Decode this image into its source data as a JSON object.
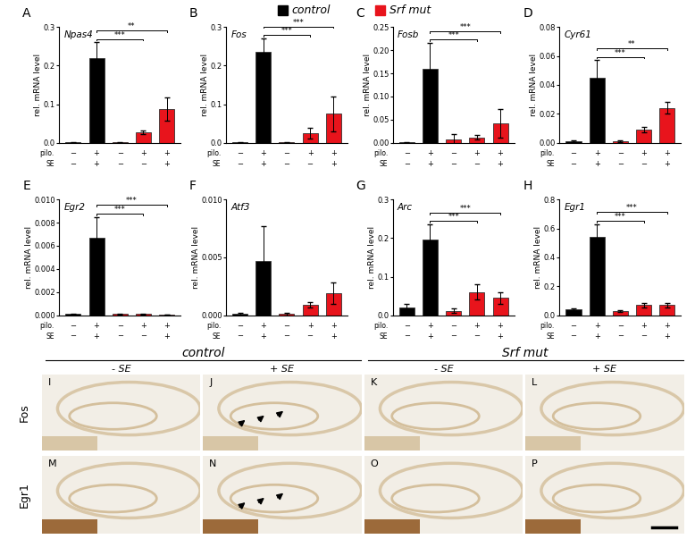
{
  "legend_entries": [
    {
      "name": "control",
      "color": "#000000"
    },
    {
      "name": "Srf mut",
      "color": "#e8141c"
    }
  ],
  "chart_data": [
    {
      "type": "bar",
      "label": "A",
      "title": "Npas4",
      "y_label": "rel. mRNA level",
      "x_rows": [
        {
          "name": "pilo.",
          "labels": [
            "−",
            "+",
            "−",
            "+",
            "+"
          ]
        },
        {
          "name": "SE",
          "labels": [
            "−",
            "+",
            "−",
            "−",
            "+"
          ]
        }
      ],
      "values": [
        0.001,
        0.22,
        0.001,
        0.027,
        0.088
      ],
      "errors": [
        0.0005,
        0.04,
        0.0005,
        0.004,
        0.03
      ],
      "colors": [
        "#000000",
        "#000000",
        "#e8141c",
        "#e8141c",
        "#e8141c"
      ],
      "ylim": [
        0,
        0.3
      ],
      "yticks": [
        {
          "value": 0,
          "label": "0.0"
        },
        {
          "value": 0.1,
          "label": "0.1"
        },
        {
          "value": 0.2,
          "label": "0.2"
        },
        {
          "value": 0.3,
          "label": "0.3"
        }
      ],
      "significance": [
        {
          "from": 1,
          "to": 3,
          "label": "***"
        },
        {
          "from": 1,
          "to": 4,
          "label": "**"
        }
      ]
    },
    {
      "type": "bar",
      "label": "B",
      "title": "Fos",
      "y_label": "rel. mRNA level",
      "x_rows": [
        {
          "name": "pilo.",
          "labels": [
            "−",
            "+",
            "−",
            "+",
            "+"
          ]
        },
        {
          "name": "SE",
          "labels": [
            "−",
            "+",
            "−",
            "−",
            "+"
          ]
        }
      ],
      "values": [
        0.001,
        0.235,
        0.001,
        0.025,
        0.075
      ],
      "errors": [
        0.001,
        0.035,
        0.001,
        0.015,
        0.045
      ],
      "colors": [
        "#000000",
        "#000000",
        "#e8141c",
        "#e8141c",
        "#e8141c"
      ],
      "ylim": [
        0,
        0.3
      ],
      "yticks": [
        {
          "value": 0,
          "label": "0.0"
        },
        {
          "value": 0.1,
          "label": "0.1"
        },
        {
          "value": 0.2,
          "label": "0.2"
        },
        {
          "value": 0.3,
          "label": "0.3"
        }
      ],
      "significance": [
        {
          "from": 1,
          "to": 3,
          "label": "***"
        },
        {
          "from": 1,
          "to": 4,
          "label": "***"
        }
      ]
    },
    {
      "type": "bar",
      "label": "C",
      "title": "Fosb",
      "y_label": "rel. mRNA level",
      "x_rows": [
        {
          "name": "pilo.",
          "labels": [
            "−",
            "+",
            "−",
            "+",
            "+"
          ]
        },
        {
          "name": "SE",
          "labels": [
            "−",
            "+",
            "−",
            "−",
            "+"
          ]
        }
      ],
      "values": [
        0.001,
        0.16,
        0.008,
        0.012,
        0.042
      ],
      "errors": [
        0.001,
        0.055,
        0.01,
        0.005,
        0.03
      ],
      "colors": [
        "#000000",
        "#000000",
        "#e8141c",
        "#e8141c",
        "#e8141c"
      ],
      "ylim": [
        0,
        0.25
      ],
      "yticks": [
        {
          "value": 0,
          "label": "0.00"
        },
        {
          "value": 0.05,
          "label": "0.05"
        },
        {
          "value": 0.1,
          "label": "0.10"
        },
        {
          "value": 0.15,
          "label": "0.15"
        },
        {
          "value": 0.2,
          "label": "0.20"
        },
        {
          "value": 0.25,
          "label": "0.25"
        }
      ],
      "significance": [
        {
          "from": 1,
          "to": 3,
          "label": "***"
        },
        {
          "from": 1,
          "to": 4,
          "label": "***"
        }
      ]
    },
    {
      "type": "bar",
      "label": "D",
      "title": "Cyr61",
      "y_label": "rel. mRNA level",
      "x_rows": [
        {
          "name": "pilo.",
          "labels": [
            "−",
            "+",
            "−",
            "+",
            "+"
          ]
        },
        {
          "name": "SE",
          "labels": [
            "−",
            "+",
            "−",
            "−",
            "+"
          ]
        }
      ],
      "values": [
        0.001,
        0.045,
        0.001,
        0.009,
        0.024
      ],
      "errors": [
        0.0005,
        0.012,
        0.0005,
        0.002,
        0.004
      ],
      "colors": [
        "#000000",
        "#000000",
        "#e8141c",
        "#e8141c",
        "#e8141c"
      ],
      "ylim": [
        0,
        0.08
      ],
      "yticks": [
        {
          "value": 0,
          "label": "0.00"
        },
        {
          "value": 0.02,
          "label": "0.02"
        },
        {
          "value": 0.04,
          "label": "0.04"
        },
        {
          "value": 0.06,
          "label": "0.06"
        },
        {
          "value": 0.08,
          "label": "0.08"
        }
      ],
      "significance": [
        {
          "from": 1,
          "to": 3,
          "label": "***"
        },
        {
          "from": 1,
          "to": 4,
          "label": "**"
        }
      ]
    },
    {
      "type": "bar",
      "label": "E",
      "title": "Egr2",
      "y_label": "rel. mRNA level",
      "x_rows": [
        {
          "name": "pilo.",
          "labels": [
            "−",
            "+",
            "−",
            "+",
            "+"
          ]
        },
        {
          "name": "SE",
          "labels": [
            "−",
            "+",
            "−",
            "−",
            "+"
          ]
        }
      ],
      "values": [
        0.0001,
        0.0067,
        0.0001,
        0.0001,
        5e-05
      ],
      "errors": [
        5e-05,
        0.0018,
        5e-05,
        5e-05,
        3e-05
      ],
      "colors": [
        "#000000",
        "#000000",
        "#e8141c",
        "#e8141c",
        "#e8141c"
      ],
      "ylim": [
        0,
        0.01
      ],
      "yticks": [
        {
          "value": 0,
          "label": "0.000"
        },
        {
          "value": 0.002,
          "label": "0.002"
        },
        {
          "value": 0.004,
          "label": "0.004"
        },
        {
          "value": 0.006,
          "label": "0.006"
        },
        {
          "value": 0.008,
          "label": "0.008"
        },
        {
          "value": 0.01,
          "label": "0.010"
        }
      ],
      "significance": [
        {
          "from": 1,
          "to": 3,
          "label": "***"
        },
        {
          "from": 1,
          "to": 4,
          "label": "***"
        }
      ]
    },
    {
      "type": "bar",
      "label": "F",
      "title": "Atf3",
      "y_label": "rel. mRNA level",
      "x_rows": [
        {
          "name": "pilo.",
          "labels": [
            "−",
            "+",
            "−",
            "+",
            "+"
          ]
        },
        {
          "name": "SE",
          "labels": [
            "−",
            "+",
            "−",
            "−",
            "+"
          ]
        }
      ],
      "values": [
        0.0001,
        0.0047,
        0.0001,
        0.0009,
        0.0019
      ],
      "errors": [
        0.0001,
        0.003,
        0.0001,
        0.0002,
        0.0009
      ],
      "colors": [
        "#000000",
        "#000000",
        "#e8141c",
        "#e8141c",
        "#e8141c"
      ],
      "ylim": [
        0,
        0.01
      ],
      "yticks": [
        {
          "value": 0,
          "label": "0.000"
        },
        {
          "value": 0.005,
          "label": "0.005"
        },
        {
          "value": 0.01,
          "label": "0.010"
        }
      ],
      "significance": []
    },
    {
      "type": "bar",
      "label": "G",
      "title": "Arc",
      "y_label": "rel. mRNA level",
      "x_rows": [
        {
          "name": "pilo.",
          "labels": [
            "−",
            "+",
            "−",
            "+",
            "+"
          ]
        },
        {
          "name": "SE",
          "labels": [
            "−",
            "+",
            "−",
            "−",
            "+"
          ]
        }
      ],
      "values": [
        0.02,
        0.195,
        0.012,
        0.06,
        0.045
      ],
      "errors": [
        0.01,
        0.04,
        0.005,
        0.02,
        0.015
      ],
      "colors": [
        "#000000",
        "#000000",
        "#e8141c",
        "#e8141c",
        "#e8141c"
      ],
      "ylim": [
        0,
        0.3
      ],
      "yticks": [
        {
          "value": 0,
          "label": "0.0"
        },
        {
          "value": 0.1,
          "label": "0.1"
        },
        {
          "value": 0.2,
          "label": "0.2"
        },
        {
          "value": 0.3,
          "label": "0.3"
        }
      ],
      "significance": [
        {
          "from": 1,
          "to": 3,
          "label": "***"
        },
        {
          "from": 1,
          "to": 4,
          "label": "***"
        }
      ]
    },
    {
      "type": "bar",
      "label": "H",
      "title": "Egr1",
      "y_label": "rel. mRNA level",
      "x_rows": [
        {
          "name": "pilo.",
          "labels": [
            "−",
            "+",
            "−",
            "+",
            "+"
          ]
        },
        {
          "name": "SE",
          "labels": [
            "−",
            "+",
            "−",
            "−",
            "+"
          ]
        }
      ],
      "values": [
        0.04,
        0.54,
        0.03,
        0.07,
        0.07
      ],
      "errors": [
        0.01,
        0.09,
        0.005,
        0.015,
        0.015
      ],
      "colors": [
        "#000000",
        "#000000",
        "#e8141c",
        "#e8141c",
        "#e8141c"
      ],
      "ylim": [
        0,
        0.8
      ],
      "yticks": [
        {
          "value": 0,
          "label": "0.0"
        },
        {
          "value": 0.2,
          "label": "0.2"
        },
        {
          "value": 0.4,
          "label": "0.4"
        },
        {
          "value": 0.6,
          "label": "0.6"
        },
        {
          "value": 0.8,
          "label": "0.8"
        }
      ],
      "significance": [
        {
          "from": 1,
          "to": 3,
          "label": "***"
        },
        {
          "from": 1,
          "to": 4,
          "label": "***"
        }
      ]
    }
  ],
  "image_panels": {
    "groups": [
      "control",
      "Srf mut"
    ],
    "conditions": [
      "- SE",
      "+ SE"
    ],
    "rows": [
      {
        "name": "Fos",
        "letters": [
          "I",
          "J",
          "K",
          "L"
        ]
      },
      {
        "name": "Egr1",
        "letters": [
          "M",
          "N",
          "O",
          "P"
        ]
      }
    ]
  }
}
